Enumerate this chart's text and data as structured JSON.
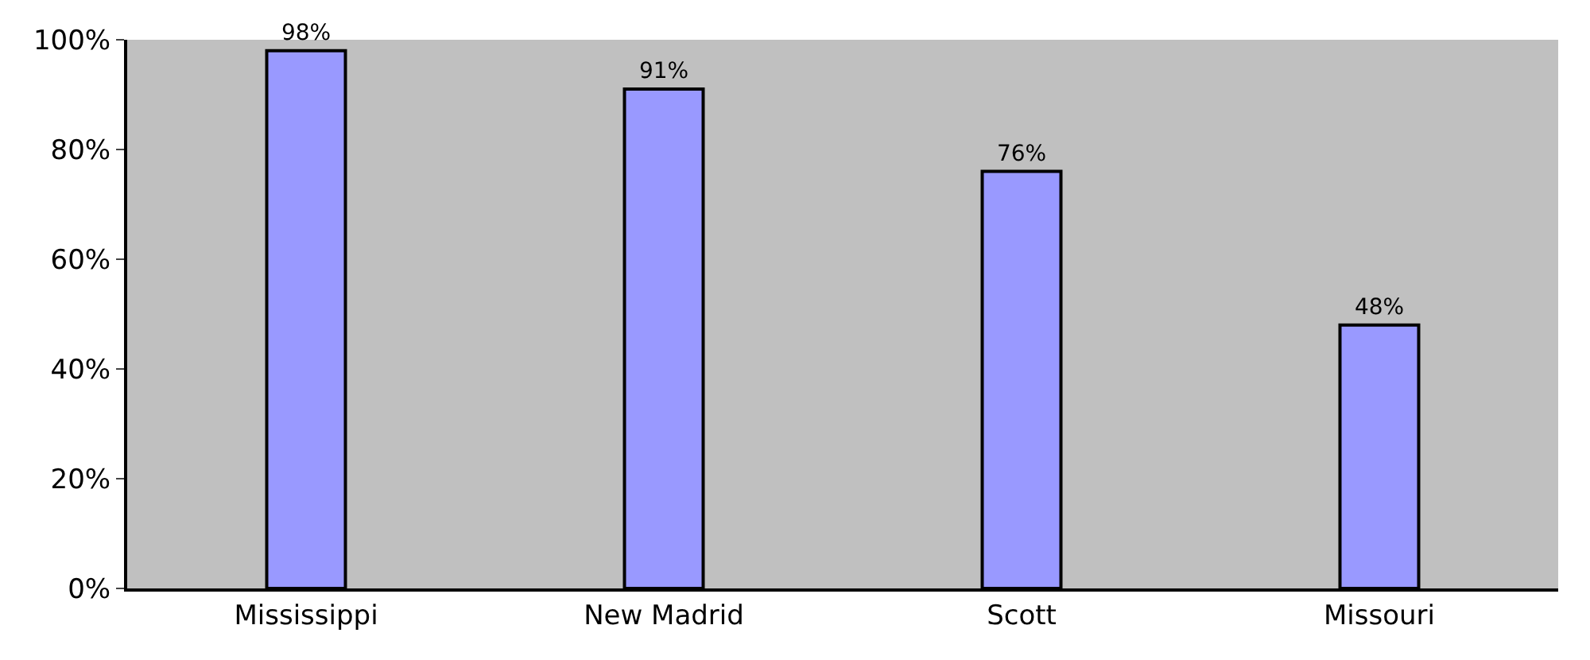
{
  "chart_data": {
    "type": "bar",
    "categories": [
      "Mississippi",
      "New Madrid",
      "Scott",
      "Missouri"
    ],
    "values": [
      98,
      91,
      76,
      48
    ],
    "value_labels": [
      "98%",
      "91%",
      "76%",
      "48%"
    ],
    "color": "#9999ff",
    "ylim": [
      0,
      100
    ],
    "yticks": [
      {
        "value": 0,
        "label": "0%"
      },
      {
        "value": 20,
        "label": "20%"
      },
      {
        "value": 40,
        "label": "40%"
      },
      {
        "value": 60,
        "label": "60%"
      },
      {
        "value": 80,
        "label": "80%"
      },
      {
        "value": 100,
        "label": "100%"
      }
    ],
    "grid": false
  }
}
